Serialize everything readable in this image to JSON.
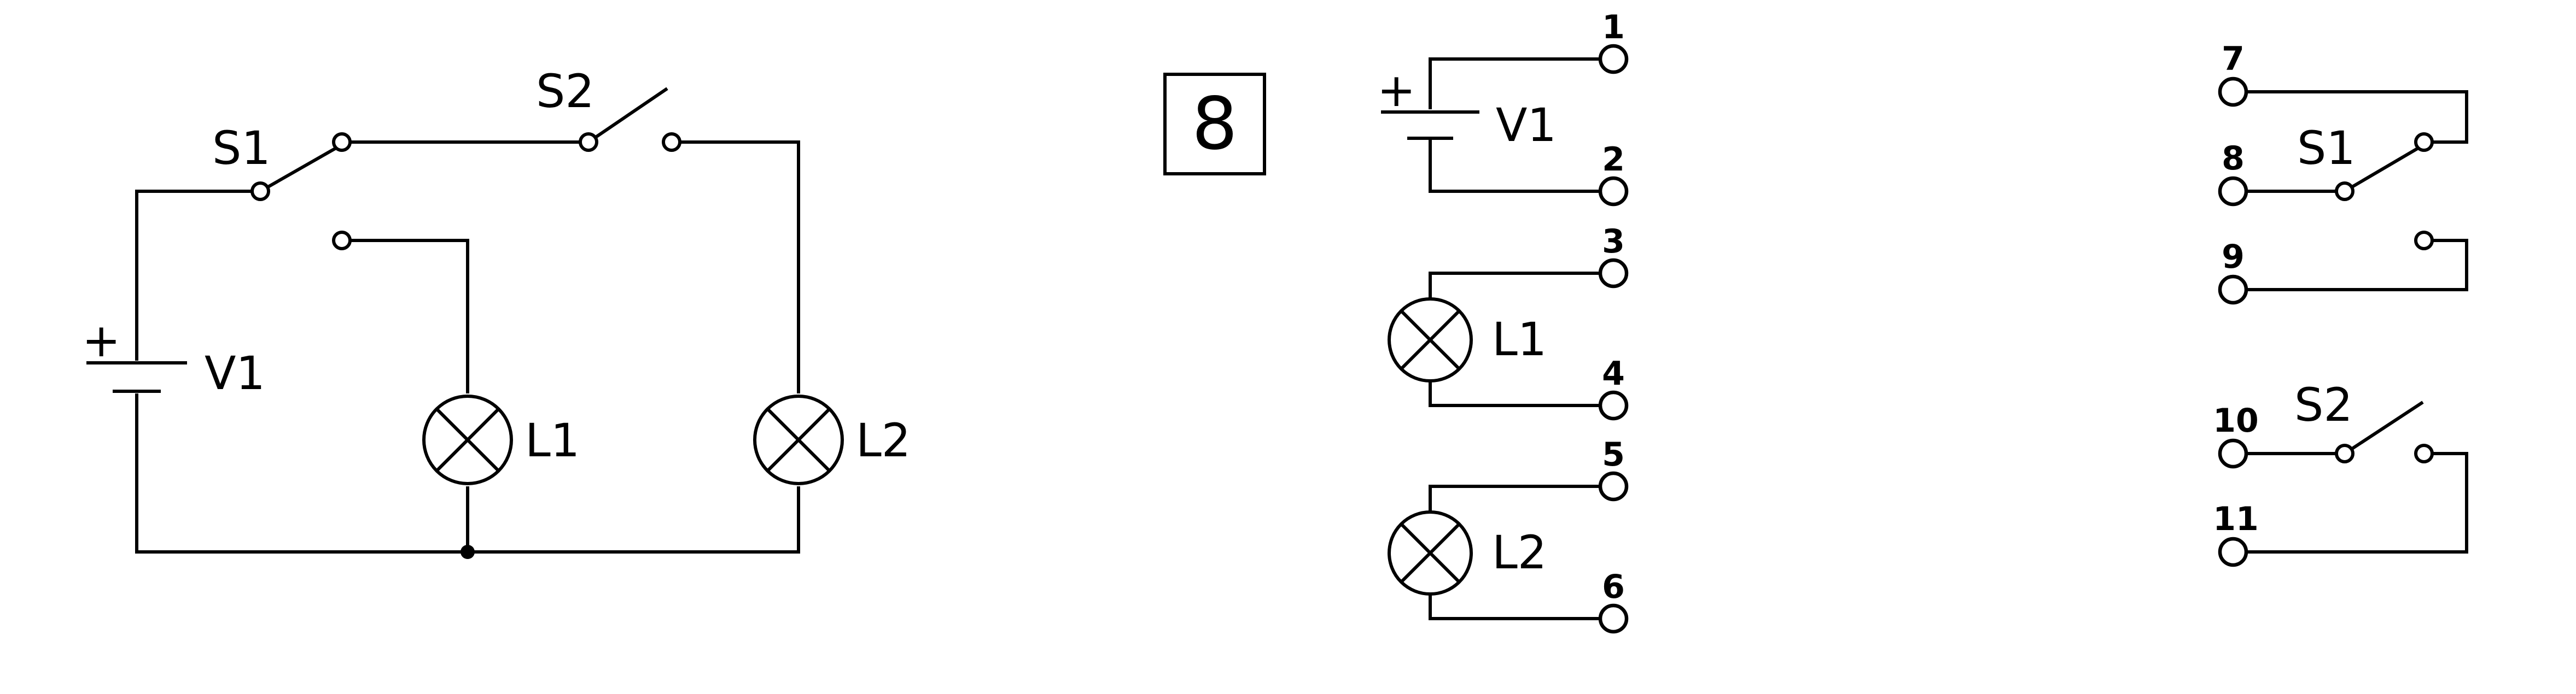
{
  "circuit": {
    "battery_label": "V1",
    "battery_polarity": "+",
    "switch1_label": "S1",
    "switch2_label": "S2",
    "lamp1_label": "L1",
    "lamp2_label": "L2"
  },
  "problem_number": "8",
  "terminals": {
    "battery": {
      "label": "V1",
      "polarity": "+",
      "top": "1",
      "bottom": "2"
    },
    "lamp1": {
      "label": "L1",
      "top": "3",
      "bottom": "4"
    },
    "lamp2": {
      "label": "L2",
      "top": "5",
      "bottom": "6"
    },
    "switch1": {
      "label": "S1",
      "t1": "7",
      "t2": "8",
      "t3": "9"
    },
    "switch2": {
      "label": "S2",
      "t1": "10",
      "t2": "11"
    }
  }
}
